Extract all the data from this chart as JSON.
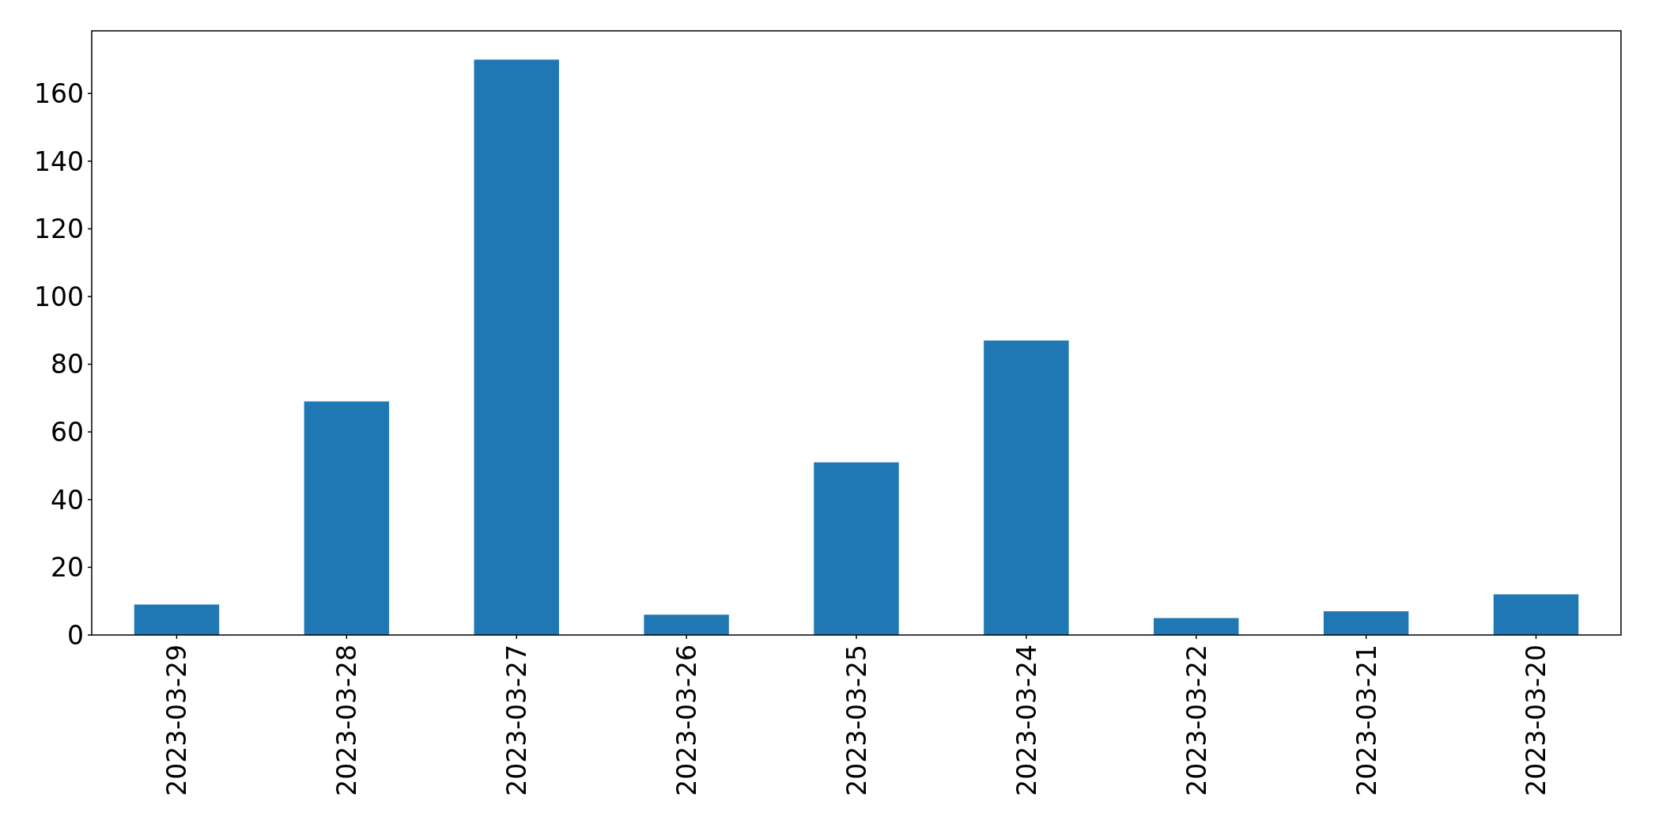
{
  "chart_data": {
    "type": "bar",
    "categories": [
      "2023-03-29",
      "2023-03-28",
      "2023-03-27",
      "2023-03-26",
      "2023-03-25",
      "2023-03-24",
      "2023-03-22",
      "2023-03-21",
      "2023-03-20"
    ],
    "values": [
      9,
      69,
      170,
      6,
      51,
      87,
      5,
      7,
      12
    ],
    "color": "#1f77b4",
    "ylim": [
      0,
      178.5
    ],
    "yticks": [
      0,
      20,
      40,
      60,
      80,
      100,
      120,
      140,
      160
    ]
  }
}
